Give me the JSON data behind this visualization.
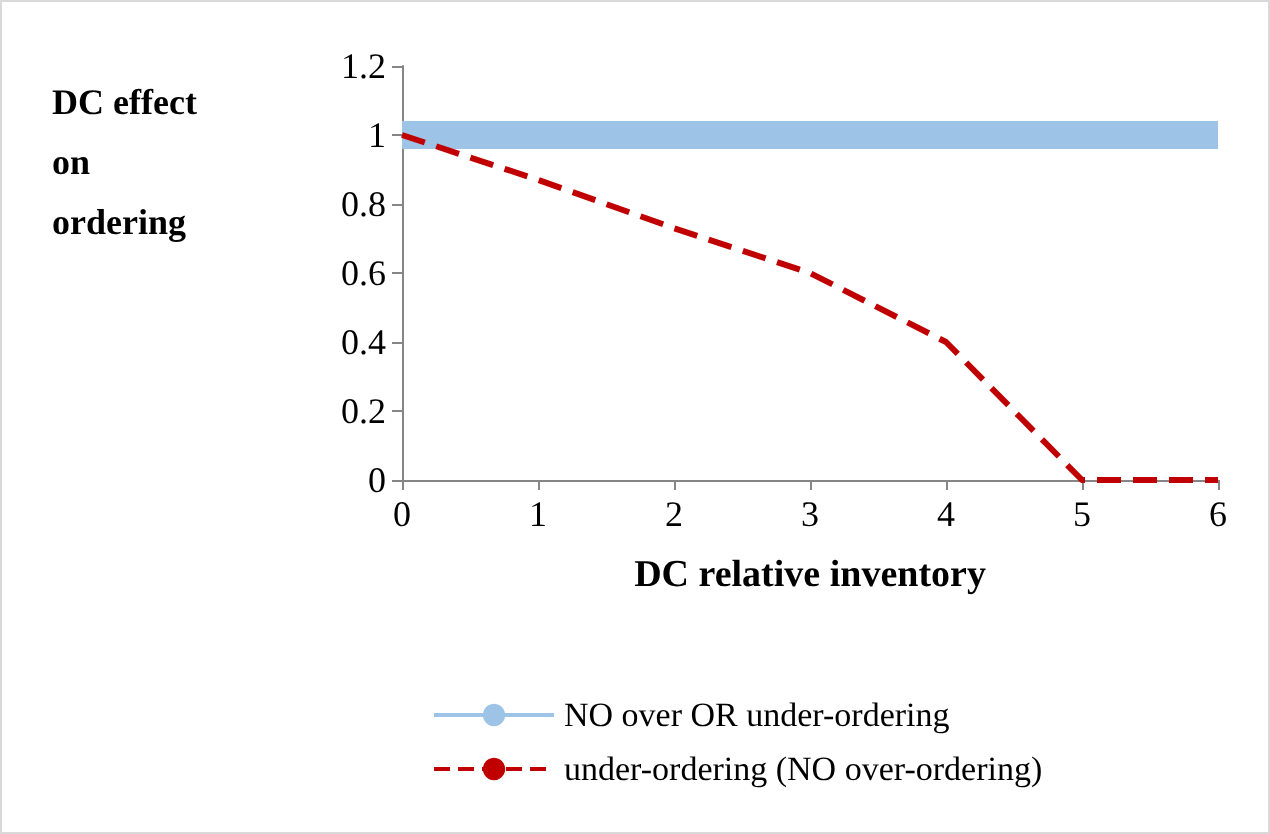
{
  "chart_data": {
    "type": "line",
    "xlabel": "DC relative inventory",
    "ylabel": "DC effect on ordering",
    "x": [
      0,
      1,
      2,
      3,
      4,
      5,
      6
    ],
    "series": [
      {
        "name": "NO over OR under-ordering",
        "color": "#9dc3e6",
        "values": [
          1,
          1,
          1,
          1,
          1,
          1,
          1
        ],
        "line_style": "solid"
      },
      {
        "name": "under-ordering (NO over-ordering)",
        "color": "#c00000",
        "values": [
          1,
          0.87,
          0.73,
          0.6,
          0.4,
          0,
          0
        ],
        "line_style": "dashed"
      }
    ],
    "xlim": [
      0,
      6
    ],
    "xticks": [
      0,
      1,
      2,
      3,
      4,
      5,
      6
    ],
    "ylim": [
      0,
      1.2
    ],
    "yticks": [
      0,
      0.2,
      0.4,
      0.6,
      0.8,
      1,
      1.2
    ],
    "grid": false,
    "legend": "bottom",
    "marker": "none"
  }
}
